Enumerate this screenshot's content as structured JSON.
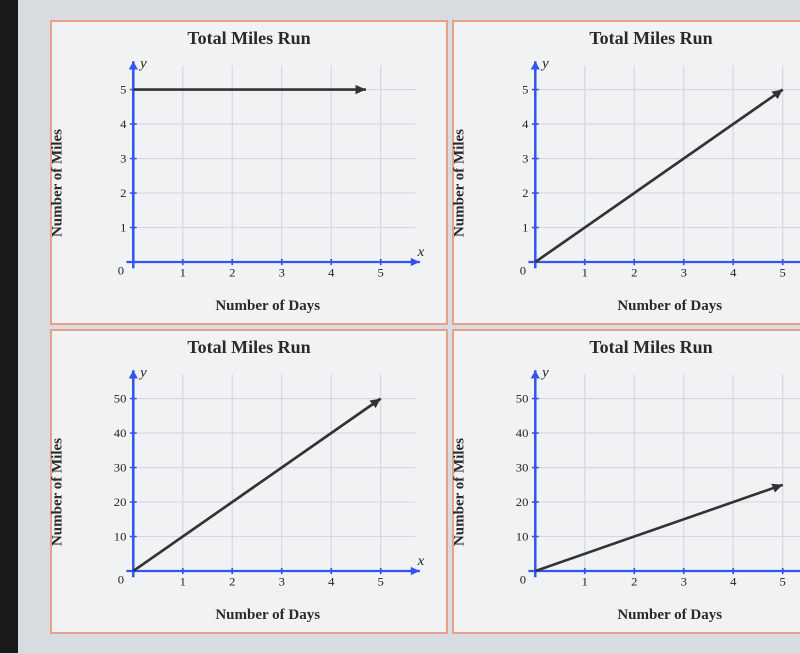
{
  "charts": [
    {
      "title": "Total Miles Run",
      "xlabel": "Number of Days",
      "ylabel": "Number of Miles",
      "x_ticks": [
        1,
        2,
        3,
        4,
        5
      ],
      "y_ticks": [
        1,
        2,
        3,
        4,
        5
      ],
      "x_max": 5.7,
      "y_max": 5.7,
      "axis_color": "#3355ee",
      "grid_color": "#d4d8dc",
      "line_color": "#333333",
      "line_width": 2.5,
      "tick_fontsize": 11,
      "line": {
        "x1": 0,
        "y1": 5,
        "x2": 4.7,
        "y2": 5
      },
      "arrow": true
    },
    {
      "title": "Total Miles Run",
      "xlabel": "Number of Days",
      "ylabel": "Number of Miles",
      "x_ticks": [
        1,
        2,
        3,
        4,
        5
      ],
      "y_ticks": [
        1,
        2,
        3,
        4,
        5
      ],
      "x_max": 5.7,
      "y_max": 5.7,
      "axis_color": "#3355ee",
      "grid_color": "#d4d8dc",
      "line_color": "#333333",
      "line_width": 2.5,
      "tick_fontsize": 11,
      "line": {
        "x1": 0,
        "y1": 0,
        "x2": 5,
        "y2": 5
      },
      "arrow": true
    },
    {
      "title": "Total Miles Run",
      "xlabel": "Number of Days",
      "ylabel": "Number of Miles",
      "x_ticks": [
        1,
        2,
        3,
        4,
        5
      ],
      "y_ticks": [
        10,
        20,
        30,
        40,
        50
      ],
      "x_max": 5.7,
      "y_max": 57,
      "axis_color": "#3355ee",
      "grid_color": "#d4d8dc",
      "line_color": "#333333",
      "line_width": 2.5,
      "tick_fontsize": 11,
      "line": {
        "x1": 0,
        "y1": 0,
        "x2": 5,
        "y2": 50
      },
      "arrow": true
    },
    {
      "title": "Total Miles Run",
      "xlabel": "Number of Days",
      "ylabel": "Number of Miles",
      "x_ticks": [
        1,
        2,
        3,
        4,
        5
      ],
      "y_ticks": [
        10,
        20,
        30,
        40,
        50
      ],
      "x_max": 5.7,
      "y_max": 57,
      "axis_color": "#3355ee",
      "grid_color": "#d4d8dc",
      "line_color": "#333333",
      "line_width": 2.5,
      "tick_fontsize": 11,
      "line": {
        "x1": 0,
        "y1": 0,
        "x2": 5,
        "y2": 25
      },
      "arrow": true
    }
  ]
}
